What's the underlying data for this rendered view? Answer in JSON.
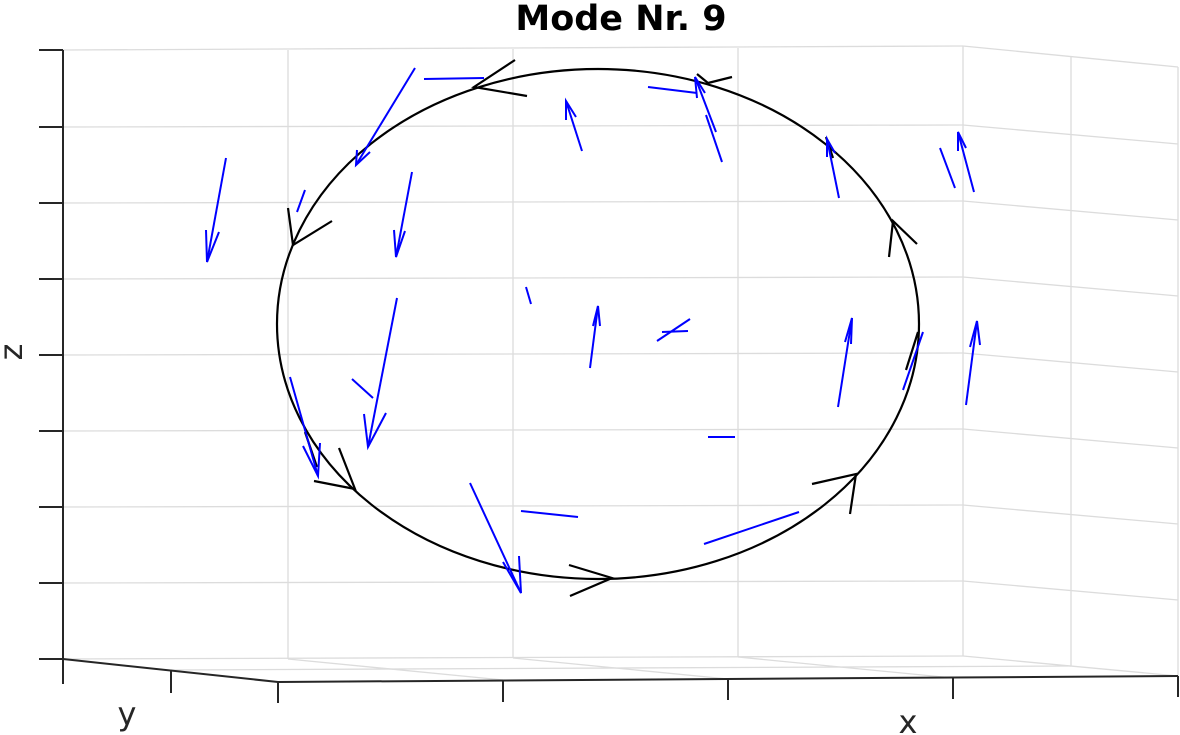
{
  "chart_data": {
    "type": "quiver3d",
    "title": "Mode Nr. 9",
    "xlabel": "x",
    "ylabel": "y",
    "zlabel": "z",
    "grid": true,
    "view": "3d-perspective",
    "colors": {
      "vectors": "#0000ff",
      "orbit": "#000000",
      "grid": "#dcdcdc",
      "axes": "#262626"
    },
    "orbit": {
      "shape": "ellipse",
      "direction": "clockwise",
      "arrow_count": 10
    },
    "vector_count": 27
  }
}
